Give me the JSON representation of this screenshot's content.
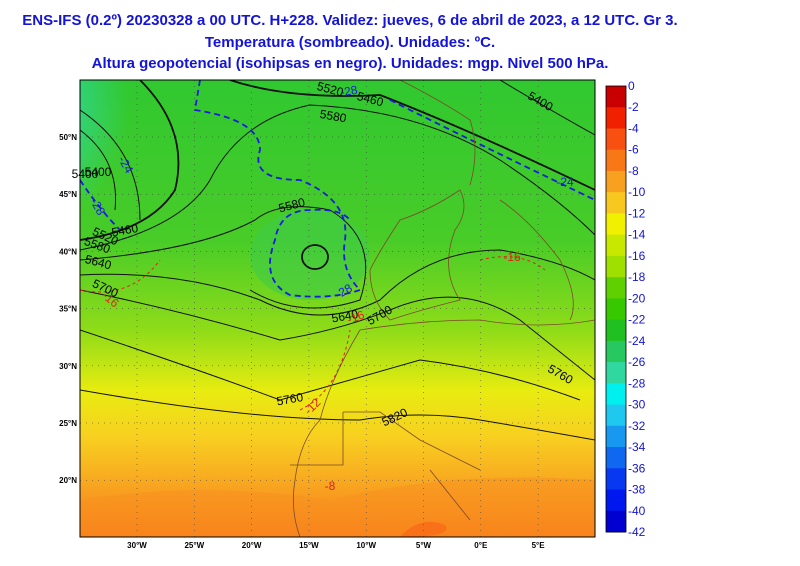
{
  "header": {
    "lines": [
      "ENS-IFS (0.2º) 20230328 a 00 UTC. H+228. Validez: jueves, 6 de abril de 2023, a 12 UTC. Gr 3.",
      "Temperatura (sombreado). Unidades: ºC.",
      "Altura geopotencial (isohipsas en negro). Unidades: mgp. Nivel 500 hPa."
    ]
  },
  "map": {
    "lat_labels": [
      "50°N",
      "45°N",
      "40°N",
      "35°N",
      "30°N",
      "25°N",
      "20°N"
    ],
    "lon_labels": [
      "30°W",
      "25°W",
      "20°W",
      "15°W",
      "10°W",
      "5°W",
      "0°E",
      "5°E"
    ],
    "contour_labels": [
      "5400",
      "5460",
      "5520",
      "5580",
      "5640",
      "5700",
      "5400",
      "5520",
      "5460",
      "5580",
      "5580",
      "5640",
      "5700",
      "5760",
      "5760",
      "5820",
      "5400",
      "-24",
      "-28",
      "-28",
      "-16",
      "-16",
      "-12",
      "-8",
      "-16",
      "-28",
      "-24"
    ]
  },
  "colorbar": {
    "labels": [
      "0",
      "-2",
      "-4",
      "-6",
      "-8",
      "-10",
      "-12",
      "-14",
      "-16",
      "-18",
      "-20",
      "-22",
      "-24",
      "-26",
      "-28",
      "-30",
      "-32",
      "-34",
      "-36",
      "-38",
      "-40",
      "-42"
    ],
    "colors": [
      "#c80000",
      "#f02000",
      "#f85010",
      "#f87818",
      "#f8a020",
      "#f8c820",
      "#f0f000",
      "#c8e800",
      "#a0e000",
      "#60d000",
      "#38c800",
      "#20c020",
      "#28c860",
      "#30d8a0",
      "#00f0f0",
      "#20c8f0",
      "#1898f0",
      "#1068f0",
      "#0838f0",
      "#0018f0",
      "#0000d0"
    ]
  }
}
